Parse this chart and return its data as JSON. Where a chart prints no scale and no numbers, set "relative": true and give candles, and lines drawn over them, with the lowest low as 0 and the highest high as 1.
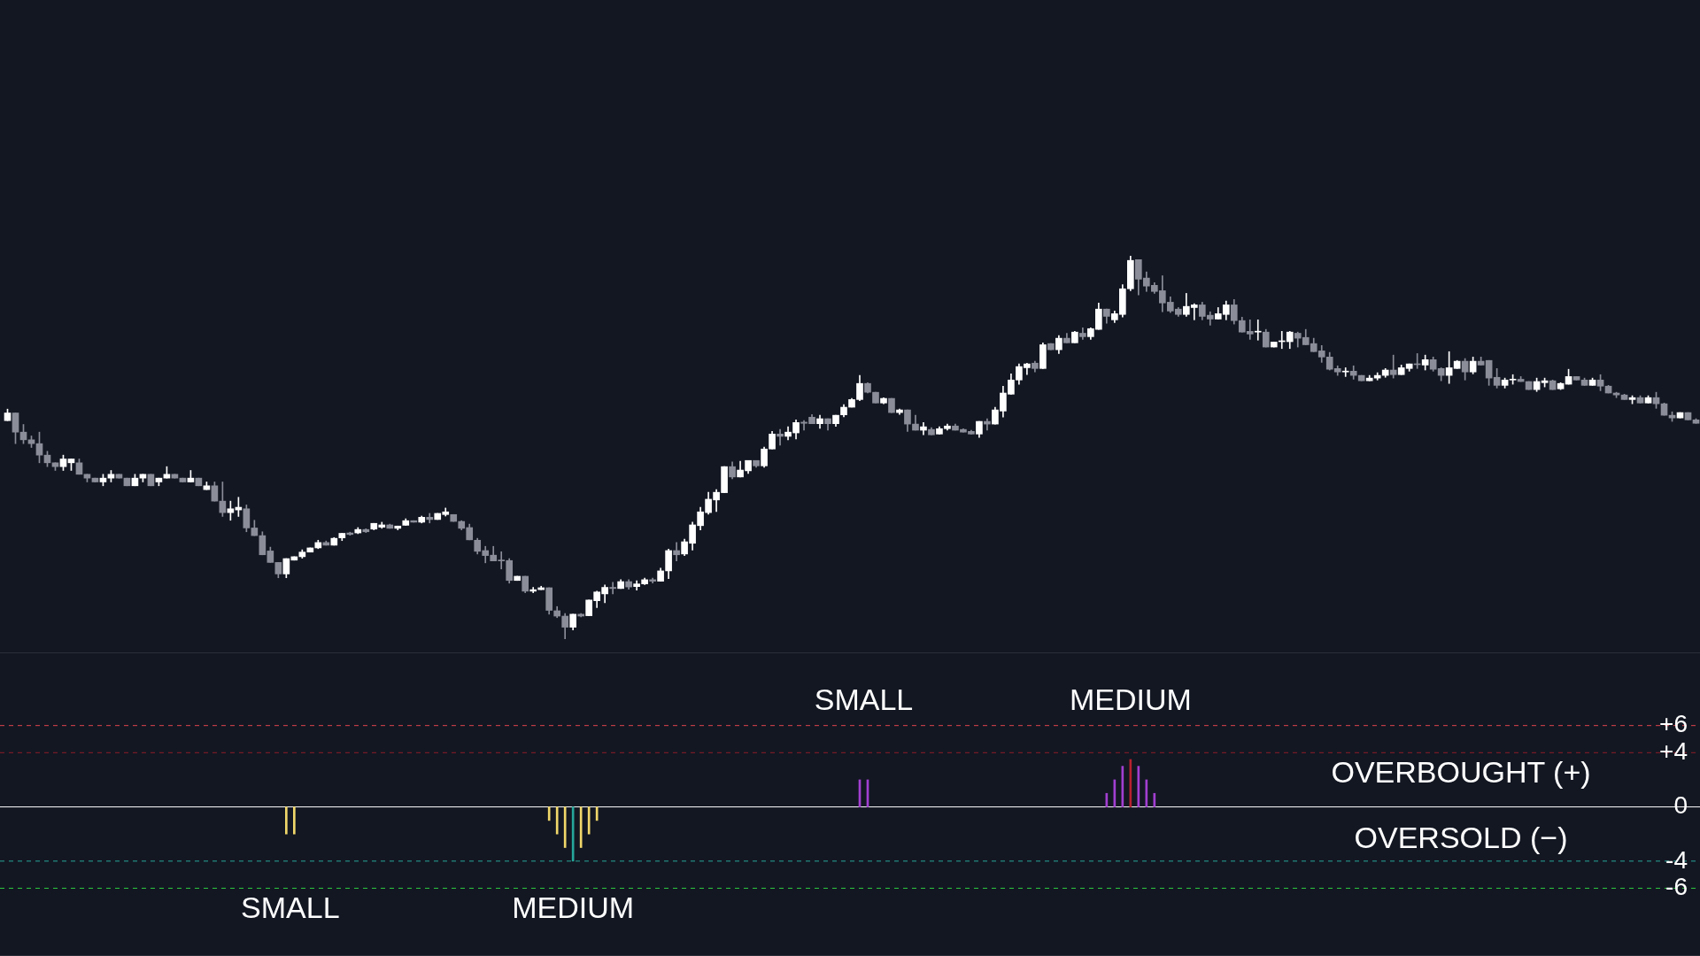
{
  "chart_data": [
    {
      "type": "candlestick",
      "relative": true,
      "tick_labels": false,
      "categories": [
        null,
        null,
        null,
        null,
        null,
        null,
        null,
        null,
        null,
        null,
        null,
        null,
        null,
        null,
        null,
        null,
        null,
        null,
        null,
        null,
        null,
        null,
        null,
        null,
        null,
        null,
        null,
        null,
        null,
        null,
        null,
        null,
        null,
        null,
        null,
        null,
        null,
        null,
        null,
        null,
        null,
        null,
        null,
        null,
        null,
        null,
        null,
        null,
        null,
        null,
        null,
        null,
        null,
        null,
        null,
        null,
        null,
        null,
        null,
        null,
        null,
        null,
        null,
        null,
        null,
        null,
        null,
        null,
        null,
        null,
        null,
        null,
        null,
        null,
        null,
        null,
        null,
        null,
        null,
        null,
        null,
        null,
        null,
        null,
        null,
        null,
        null,
        null,
        null,
        null,
        null,
        null,
        null,
        null,
        null,
        null,
        null,
        null,
        null,
        null,
        null,
        null,
        null,
        null,
        null,
        null,
        null,
        null,
        null,
        null,
        null,
        null,
        null,
        null,
        null,
        null,
        null,
        null,
        null,
        null,
        null,
        null,
        null,
        null,
        null,
        null,
        null,
        null,
        null,
        null,
        null,
        null,
        null,
        null,
        null,
        null,
        null,
        null,
        null,
        null,
        null,
        null,
        null,
        null,
        null,
        null,
        null,
        null,
        null,
        null,
        null,
        null,
        null,
        null,
        null,
        null,
        null,
        null,
        null,
        null,
        null,
        null,
        null,
        null,
        null,
        null,
        null,
        null,
        null,
        null,
        null,
        null,
        null,
        null,
        null,
        null,
        null,
        null,
        null,
        null,
        null,
        null,
        null,
        null,
        null,
        null,
        null,
        null,
        null,
        null,
        null,
        null,
        null,
        null,
        null,
        null,
        null,
        null,
        null,
        null,
        null,
        null,
        null,
        null,
        null,
        null,
        null,
        null,
        null,
        null,
        null,
        null,
        null
      ],
      "ohlc": [
        [
          0.57,
          0.6,
          0.57,
          0.59
        ],
        [
          0.59,
          0.59,
          0.51,
          0.54
        ],
        [
          0.54,
          0.56,
          0.51,
          0.52
        ],
        [
          0.52,
          0.53,
          0.5,
          0.51
        ],
        [
          0.51,
          0.54,
          0.46,
          0.48
        ],
        [
          0.48,
          0.49,
          0.45,
          0.46
        ],
        [
          0.46,
          0.46,
          0.44,
          0.45
        ],
        [
          0.45,
          0.48,
          0.44,
          0.47
        ],
        [
          0.46,
          0.47,
          0.44,
          0.47
        ],
        [
          0.46,
          0.47,
          0.43,
          0.43
        ],
        [
          0.43,
          0.43,
          0.41,
          0.42
        ],
        [
          0.42,
          0.42,
          0.41,
          0.41
        ],
        [
          0.41,
          0.43,
          0.4,
          0.42
        ],
        [
          0.42,
          0.44,
          0.41,
          0.43
        ],
        [
          0.43,
          0.43,
          0.42,
          0.42
        ],
        [
          0.42,
          0.42,
          0.4,
          0.4
        ],
        [
          0.4,
          0.43,
          0.4,
          0.42
        ],
        [
          0.42,
          0.43,
          0.41,
          0.43
        ],
        [
          0.43,
          0.43,
          0.4,
          0.4
        ],
        [
          0.41,
          0.42,
          0.4,
          0.42
        ],
        [
          0.42,
          0.45,
          0.42,
          0.43
        ],
        [
          0.43,
          0.43,
          0.42,
          0.42
        ],
        [
          0.42,
          0.42,
          0.41,
          0.41
        ],
        [
          0.41,
          0.44,
          0.41,
          0.42
        ],
        [
          0.42,
          0.42,
          0.4,
          0.4
        ],
        [
          0.39,
          0.41,
          0.39,
          0.4
        ],
        [
          0.4,
          0.41,
          0.36,
          0.36
        ],
        [
          0.36,
          0.41,
          0.32,
          0.33
        ],
        [
          0.33,
          0.36,
          0.31,
          0.34
        ],
        [
          0.337,
          0.37,
          0.32,
          0.344
        ],
        [
          0.34,
          0.35,
          0.28,
          0.29
        ],
        [
          0.29,
          0.31,
          0.27,
          0.27
        ],
        [
          0.27,
          0.28,
          0.22,
          0.22
        ],
        [
          0.23,
          0.24,
          0.2,
          0.2
        ],
        [
          0.2,
          0.2,
          0.16,
          0.17
        ],
        [
          0.17,
          0.21,
          0.16,
          0.21
        ],
        [
          0.206,
          0.215,
          0.206,
          0.215
        ],
        [
          0.215,
          0.233,
          0.211,
          0.227
        ],
        [
          0.227,
          0.238,
          0.227,
          0.238
        ],
        [
          0.238,
          0.258,
          0.236,
          0.252
        ],
        [
          0.252,
          0.256,
          0.245,
          0.245
        ],
        [
          0.245,
          0.265,
          0.245,
          0.263
        ],
        [
          0.264,
          0.276,
          0.257,
          0.276
        ],
        [
          0.277,
          0.279,
          0.271,
          0.273
        ],
        [
          0.277,
          0.291,
          0.275,
          0.286
        ],
        [
          0.286,
          0.288,
          0.278,
          0.28
        ],
        [
          0.287,
          0.302,
          0.285,
          0.302
        ],
        [
          0.292,
          0.305,
          0.289,
          0.298
        ],
        [
          0.298,
          0.3,
          0.289,
          0.289
        ],
        [
          0.289,
          0.295,
          0.285,
          0.295
        ],
        [
          0.297,
          0.314,
          0.297,
          0.309
        ],
        [
          0.309,
          0.309,
          0.305,
          0.305
        ],
        [
          0.305,
          0.321,
          0.303,
          0.318
        ],
        [
          0.318,
          0.328,
          0.303,
          0.312
        ],
        [
          0.312,
          0.328,
          0.312,
          0.328
        ],
        [
          0.325,
          0.342,
          0.321,
          0.332
        ],
        [
          0.325,
          0.325,
          0.307,
          0.307
        ],
        [
          0.307,
          0.309,
          0.285,
          0.289
        ],
        [
          0.291,
          0.3,
          0.259,
          0.259
        ],
        [
          0.258,
          0.263,
          0.222,
          0.229
        ],
        [
          0.231,
          0.242,
          0.199,
          0.218
        ],
        [
          0.219,
          0.242,
          0.204,
          0.204
        ],
        [
          0.206,
          0.228,
          0.183,
          0.204
        ],
        [
          0.205,
          0.21,
          0.146,
          0.153
        ],
        [
          0.153,
          0.164,
          0.153,
          0.164
        ],
        [
          0.164,
          0.164,
          0.121,
          0.125
        ],
        [
          0.125,
          0.135,
          0.121,
          0.129
        ],
        [
          0.129,
          0.138,
          0.129,
          0.134
        ],
        [
          0.134,
          0.134,
          0.065,
          0.075
        ],
        [
          0.074,
          0.085,
          0.056,
          0.06
        ],
        [
          0.06,
          0.067,
          0,
          0.031
        ],
        [
          0.031,
          0.065,
          0.024,
          0.065
        ],
        [
          0.065,
          0.067,
          0.058,
          0.06
        ],
        [
          0.061,
          0.102,
          0.061,
          0.102
        ],
        [
          0.1,
          0.125,
          0.082,
          0.123
        ],
        [
          0.118,
          0.141,
          0.095,
          0.135
        ],
        [
          0.135,
          0.148,
          0.118,
          0.132
        ],
        [
          0.132,
          0.155,
          0.132,
          0.15
        ],
        [
          0.15,
          0.155,
          0.13,
          0.136
        ],
        [
          0.137,
          0.152,
          0.128,
          0.144
        ],
        [
          0.144,
          0.159,
          0.142,
          0.155
        ],
        [
          0.155,
          0.159,
          0.146,
          0.151
        ],
        [
          0.151,
          0.185,
          0.151,
          0.178
        ],
        [
          0.178,
          0.235,
          0.158,
          0.231
        ],
        [
          0.231,
          0.252,
          0.204,
          0.22
        ],
        [
          0.222,
          0.261,
          0.218,
          0.254
        ],
        [
          0.25,
          0.305,
          0.232,
          0.298
        ],
        [
          0.296,
          0.344,
          0.285,
          0.332
        ],
        [
          0.33,
          0.383,
          0.326,
          0.365
        ],
        [
          0.363,
          0.39,
          0.333,
          0.383
        ],
        [
          0.382,
          0.45,
          0.382,
          0.45
        ],
        [
          0.45,
          0.462,
          0.418,
          0.423
        ],
        [
          0.423,
          0.464,
          0.423,
          0.441
        ],
        [
          0.439,
          0.466,
          0.432,
          0.466
        ],
        [
          0.466,
          0.466,
          0.448,
          0.452
        ],
        [
          0.452,
          0.501,
          0.448,
          0.496
        ],
        [
          0.496,
          0.542,
          0.496,
          0.535
        ],
        [
          0.535,
          0.547,
          0.506,
          0.529
        ],
        [
          0.529,
          0.554,
          0.52,
          0.54
        ],
        [
          0.538,
          0.572,
          0.522,
          0.565
        ],
        [
          0.566,
          0.57,
          0.545,
          0.563
        ],
        [
          0.579,
          0.586,
          0.562,
          0.562
        ],
        [
          0.562,
          0.584,
          0.55,
          0.575
        ],
        [
          0.575,
          0.575,
          0.545,
          0.562
        ],
        [
          0.562,
          0.584,
          0.555,
          0.584
        ],
        [
          0.585,
          0.612,
          0.58,
          0.605
        ],
        [
          0.605,
          0.628,
          0.605,
          0.625
        ],
        [
          0.625,
          0.688,
          0.622,
          0.667
        ],
        [
          0.667,
          0.669,
          0.642,
          0.644
        ],
        [
          0.644,
          0.644,
          0.616,
          0.616
        ],
        [
          0.616,
          0.63,
          0.614,
          0.628
        ],
        [
          0.628,
          0.628,
          0.591,
          0.591
        ],
        [
          0.591,
          0.6,
          0.586,
          0.598
        ],
        [
          0.598,
          0.598,
          0.542,
          0.561
        ],
        [
          0.561,
          0.584,
          0.545,
          0.545
        ],
        [
          0.545,
          0.565,
          0.533,
          0.554
        ],
        [
          0.547,
          0.552,
          0.533,
          0.533
        ],
        [
          0.535,
          0.554,
          0.535,
          0.549
        ],
        [
          0.549,
          0.561,
          0.545,
          0.556
        ],
        [
          0.556,
          0.561,
          0.545,
          0.545
        ],
        [
          0.547,
          0.549,
          0.54,
          0.54
        ],
        [
          0.542,
          0.545,
          0.535,
          0.535
        ],
        [
          0.535,
          0.568,
          0.526,
          0.568
        ],
        [
          0.568,
          0.575,
          0.545,
          0.561
        ],
        [
          0.561,
          0.605,
          0.561,
          0.598
        ],
        [
          0.595,
          0.66,
          0.579,
          0.642
        ],
        [
          0.639,
          0.692,
          0.639,
          0.676
        ],
        [
          0.676,
          0.718,
          0.665,
          0.711
        ],
        [
          0.708,
          0.72,
          0.69,
          0.718
        ],
        [
          0.72,
          0.725,
          0.697,
          0.706
        ],
        [
          0.706,
          0.773,
          0.706,
          0.768
        ],
        [
          0.771,
          0.771,
          0.755,
          0.755
        ],
        [
          0.755,
          0.792,
          0.745,
          0.785
        ],
        [
          0.785,
          0.798,
          0.773,
          0.773
        ],
        [
          0.773,
          0.803,
          0.773,
          0.801
        ],
        [
          0.798,
          0.812,
          0.782,
          0.789
        ],
        [
          0.789,
          0.812,
          0.782,
          0.81
        ],
        [
          0.808,
          0.877,
          0.808,
          0.861
        ],
        [
          0.861,
          0.861,
          0.824,
          0.842
        ],
        [
          0.833,
          0.856,
          0.826,
          0.849
        ],
        [
          0.847,
          0.925,
          0.84,
          0.914
        ],
        [
          0.914,
          1,
          0.909,
          0.988
        ],
        [
          0.99,
          0.99,
          0.898,
          0.939
        ],
        [
          0.942,
          0.958,
          0.907,
          0.921
        ],
        [
          0.923,
          0.93,
          0.902,
          0.907
        ],
        [
          0.909,
          0.948,
          0.854,
          0.877
        ],
        [
          0.879,
          0.893,
          0.852,
          0.856
        ],
        [
          0.861,
          0.865,
          0.842,
          0.847
        ],
        [
          0.847,
          0.902,
          0.842,
          0.868
        ],
        [
          0.865,
          0.875,
          0.833,
          0.872
        ],
        [
          0.872,
          0.879,
          0.833,
          0.842
        ],
        [
          0.845,
          0.854,
          0.819,
          0.835
        ],
        [
          0.835,
          0.865,
          0.835,
          0.849
        ],
        [
          0.847,
          0.882,
          0.833,
          0.872
        ],
        [
          0.872,
          0.886,
          0.822,
          0.831
        ],
        [
          0.831,
          0.84,
          0.801,
          0.801
        ],
        [
          0.803,
          0.833,
          0.782,
          0.796
        ],
        [
          0.801,
          0.833,
          0.78,
          0.803
        ],
        [
          0.801,
          0.808,
          0.762,
          0.762
        ],
        [
          0.762,
          0.775,
          0.762,
          0.775
        ],
        [
          0.776,
          0.803,
          0.758,
          0.778
        ],
        [
          0.776,
          0.803,
          0.758,
          0.801
        ],
        [
          0.798,
          0.801,
          0.762,
          0.785
        ],
        [
          0.787,
          0.808,
          0.768,
          0.768
        ],
        [
          0.771,
          0.785,
          0.75,
          0.75
        ],
        [
          0.752,
          0.766,
          0.722,
          0.736
        ],
        [
          0.736,
          0.748,
          0.702,
          0.704
        ],
        [
          0.706,
          0.713,
          0.688,
          0.697
        ],
        [
          0.697,
          0.708,
          0.685,
          0.699
        ],
        [
          0.699,
          0.713,
          0.678,
          0.688
        ],
        [
          0.688,
          0.688,
          0.674,
          0.674
        ],
        [
          0.674,
          0.688,
          0.674,
          0.681
        ],
        [
          0.681,
          0.695,
          0.676,
          0.688
        ],
        [
          0.688,
          0.706,
          0.683,
          0.702
        ],
        [
          0.702,
          0.741,
          0.681,
          0.69
        ],
        [
          0.69,
          0.715,
          0.69,
          0.708
        ],
        [
          0.706,
          0.718,
          0.699,
          0.718
        ],
        [
          0.718,
          0.745,
          0.706,
          0.716
        ],
        [
          0.715,
          0.741,
          0.702,
          0.729
        ],
        [
          0.729,
          0.736,
          0.699,
          0.704
        ],
        [
          0.706,
          0.708,
          0.674,
          0.688
        ],
        [
          0.688,
          0.75,
          0.667,
          0.708
        ],
        [
          0.706,
          0.727,
          0.706,
          0.725
        ],
        [
          0.725,
          0.732,
          0.676,
          0.697
        ],
        [
          0.697,
          0.736,
          0.692,
          0.725
        ],
        [
          0.725,
          0.736,
          0.715,
          0.715
        ],
        [
          0.727,
          0.727,
          0.662,
          0.681
        ],
        [
          0.683,
          0.706,
          0.655,
          0.662
        ],
        [
          0.662,
          0.681,
          0.655,
          0.676
        ],
        [
          0.676,
          0.69,
          0.665,
          0.678
        ],
        [
          0.678,
          0.685,
          0.672,
          0.672
        ],
        [
          0.672,
          0.672,
          0.651,
          0.651
        ],
        [
          0.651,
          0.681,
          0.646,
          0.672
        ],
        [
          0.669,
          0.681,
          0.658,
          0.674
        ],
        [
          0.674,
          0.676,
          0.651,
          0.651
        ],
        [
          0.653,
          0.669,
          0.651,
          0.667
        ],
        [
          0.665,
          0.704,
          0.665,
          0.685
        ],
        [
          0.685,
          0.685,
          0.676,
          0.676
        ],
        [
          0.676,
          0.681,
          0.662,
          0.662
        ],
        [
          0.662,
          0.681,
          0.662,
          0.676
        ],
        [
          0.676,
          0.69,
          0.648,
          0.66
        ],
        [
          0.66,
          0.662,
          0.642,
          0.642
        ],
        [
          0.642,
          0.644,
          0.63,
          0.637
        ],
        [
          0.637,
          0.639,
          0.625,
          0.625
        ],
        [
          0.625,
          0.635,
          0.614,
          0.63
        ],
        [
          0.63,
          0.635,
          0.616,
          0.616
        ],
        [
          0.616,
          0.635,
          0.616,
          0.63
        ],
        [
          0.63,
          0.644,
          0.602,
          0.614
        ],
        [
          0.614,
          0.616,
          0.584,
          0.584
        ],
        [
          0.584,
          0.593,
          0.568,
          0.577
        ],
        [
          0.577,
          0.591,
          0.577,
          0.591
        ],
        [
          0.591,
          0.591,
          0.572,
          0.572
        ],
        [
          0.572,
          0.575,
          0.563,
          0.563
        ]
      ],
      "colors": [
        "#ffffff",
        "#8b8e98",
        "#8b8e98",
        "#8b8e98",
        "#8b8e98",
        "#8b8e98",
        "#8b8e98",
        "#ffffff",
        "#ffffff",
        "#8b8e98",
        "#8b8e98",
        "#8b8e98",
        "#ffffff",
        "#ffffff",
        "#8b8e98",
        "#8b8e98",
        "#ffffff",
        "#ffffff",
        "#8b8e98",
        "#ffffff",
        "#ffffff",
        "#8b8e98",
        "#8b8e98",
        "#ffffff",
        "#8b8e98",
        "#ffffff",
        "#8b8e98",
        "#8b8e98",
        "#ffffff",
        "#ffffff",
        "#8b8e98",
        "#8b8e98",
        "#8b8e98",
        "#8b8e98",
        "#8b8e98",
        "#ffffff",
        "#ffffff",
        "#ffffff",
        "#ffffff",
        "#ffffff",
        "#8b8e98",
        "#ffffff",
        "#ffffff",
        "#8b8e98",
        "#ffffff",
        "#8b8e98",
        "#ffffff",
        "#ffffff",
        "#8b8e98",
        "#ffffff",
        "#ffffff",
        "#8b8e98",
        "#ffffff",
        "#8b8e98",
        "#ffffff",
        "#ffffff",
        "#8b8e98",
        "#8b8e98",
        "#8b8e98",
        "#8b8e98",
        "#8b8e98",
        "#8b8e98",
        "#8b8e98",
        "#8b8e98",
        "#ffffff",
        "#8b8e98",
        "#ffffff",
        "#ffffff",
        "#8b8e98",
        "#8b8e98",
        "#8b8e98",
        "#ffffff",
        "#8b8e98",
        "#ffffff",
        "#ffffff",
        "#ffffff",
        "#8b8e98",
        "#ffffff",
        "#8b8e98",
        "#ffffff",
        "#ffffff",
        "#8b8e98",
        "#ffffff",
        "#ffffff",
        "#8b8e98",
        "#ffffff",
        "#ffffff",
        "#ffffff",
        "#ffffff",
        "#ffffff",
        "#ffffff",
        "#8b8e98",
        "#ffffff",
        "#ffffff",
        "#8b8e98",
        "#ffffff",
        "#ffffff",
        "#8b8e98",
        "#ffffff",
        "#ffffff",
        "#8b8e98",
        "#8b8e98",
        "#ffffff",
        "#8b8e98",
        "#ffffff",
        "#ffffff",
        "#ffffff",
        "#ffffff",
        "#8b8e98",
        "#8b8e98",
        "#ffffff",
        "#8b8e98",
        "#ffffff",
        "#8b8e98",
        "#8b8e98",
        "#ffffff",
        "#8b8e98",
        "#ffffff",
        "#ffffff",
        "#8b8e98",
        "#8b8e98",
        "#8b8e98",
        "#ffffff",
        "#8b8e98",
        "#ffffff",
        "#ffffff",
        "#ffffff",
        "#ffffff",
        "#ffffff",
        "#8b8e98",
        "#ffffff",
        "#8b8e98",
        "#ffffff",
        "#8b8e98",
        "#ffffff",
        "#8b8e98",
        "#ffffff",
        "#ffffff",
        "#8b8e98",
        "#ffffff",
        "#ffffff",
        "#ffffff",
        "#8b8e98",
        "#8b8e98",
        "#8b8e98",
        "#8b8e98",
        "#8b8e98",
        "#8b8e98",
        "#ffffff",
        "#ffffff",
        "#8b8e98",
        "#8b8e98",
        "#ffffff",
        "#ffffff",
        "#8b8e98",
        "#8b8e98",
        "#8b8e98",
        "#ffffff",
        "#8b8e98",
        "#ffffff",
        "#ffffff",
        "#ffffff",
        "#8b8e98",
        "#8b8e98",
        "#8b8e98",
        "#8b8e98",
        "#8b8e98",
        "#8b8e98",
        "#ffffff",
        "#8b8e98",
        "#8b8e98",
        "#ffffff",
        "#ffffff",
        "#ffffff",
        "#8b8e98",
        "#ffffff",
        "#ffffff",
        "#8b8e98",
        "#ffffff",
        "#8b8e98",
        "#8b8e98",
        "#ffffff",
        "#ffffff",
        "#8b8e98",
        "#ffffff",
        "#8b8e98",
        "#8b8e98",
        "#8b8e98",
        "#ffffff",
        "#ffffff",
        "#8b8e98",
        "#8b8e98",
        "#ffffff",
        "#ffffff",
        "#8b8e98",
        "#ffffff",
        "#ffffff",
        "#8b8e98",
        "#8b8e98",
        "#ffffff",
        "#8b8e98",
        "#8b8e98",
        "#8b8e98",
        "#8b8e98",
        "#ffffff",
        "#8b8e98",
        "#ffffff",
        "#8b8e98",
        "#8b8e98",
        "#8b8e98",
        "#ffffff",
        "#8b8e98",
        "#8b8e98"
      ]
    },
    {
      "type": "bar",
      "tick_labels": "y",
      "categories": [
        null,
        null,
        null,
        null,
        null,
        null,
        null,
        null,
        null,
        null,
        null,
        null,
        null,
        null,
        null,
        null,
        null,
        null,
        null,
        null,
        null,
        null,
        null,
        null,
        null,
        null,
        null,
        null,
        null,
        null,
        null,
        null,
        null,
        null,
        null,
        null,
        null,
        null,
        null,
        null,
        null,
        null,
        null,
        null,
        null,
        null,
        null,
        null,
        null,
        null,
        null,
        null,
        null,
        null,
        null,
        null,
        null,
        null,
        null,
        null,
        null,
        null,
        null,
        null,
        null,
        null,
        null,
        null,
        null,
        null,
        null,
        null,
        null,
        null,
        null,
        null,
        null,
        null,
        null,
        null,
        null,
        null,
        null,
        null,
        null,
        null,
        null,
        null,
        null,
        null,
        null,
        null,
        null,
        null,
        null,
        null,
        null,
        null,
        null,
        null,
        null,
        null,
        null,
        null,
        null,
        null,
        null,
        null,
        null,
        null,
        null,
        null,
        null,
        null,
        null,
        null,
        null,
        null,
        null,
        null,
        null,
        null,
        null,
        null,
        null,
        null,
        null,
        null,
        null,
        null,
        null,
        null,
        null,
        null,
        null,
        null,
        null,
        null,
        null,
        null,
        null,
        null,
        null,
        null,
        null,
        null,
        null,
        null,
        null,
        null,
        null,
        null,
        null,
        null,
        null,
        null,
        null,
        null,
        null,
        null,
        null,
        null,
        null,
        null,
        null,
        null,
        null,
        null,
        null,
        null,
        null,
        null,
        null,
        null,
        null,
        null,
        null,
        null,
        null,
        null,
        null,
        null,
        null,
        null,
        null,
        null,
        null,
        null,
        null,
        null,
        null,
        null,
        null,
        null,
        null,
        null,
        null,
        null,
        null,
        null,
        null,
        null,
        null,
        null,
        null,
        null,
        null,
        null,
        null,
        null,
        null,
        null,
        null
      ],
      "values": [
        null,
        null,
        null,
        null,
        null,
        null,
        null,
        null,
        null,
        null,
        null,
        null,
        null,
        null,
        null,
        null,
        null,
        null,
        null,
        null,
        null,
        null,
        null,
        null,
        null,
        null,
        null,
        null,
        null,
        null,
        null,
        null,
        null,
        null,
        null,
        -2,
        -2,
        null,
        null,
        null,
        null,
        null,
        null,
        null,
        null,
        null,
        null,
        null,
        null,
        null,
        null,
        null,
        null,
        null,
        null,
        null,
        null,
        null,
        null,
        null,
        null,
        null,
        null,
        null,
        null,
        null,
        null,
        null,
        -1,
        -2,
        -3,
        -4,
        -3,
        -2,
        -1,
        null,
        null,
        null,
        null,
        null,
        null,
        null,
        null,
        null,
        null,
        null,
        null,
        null,
        null,
        null,
        null,
        null,
        null,
        null,
        null,
        null,
        null,
        null,
        null,
        null,
        null,
        null,
        null,
        null,
        null,
        null,
        null,
        2,
        2,
        null,
        null,
        null,
        null,
        null,
        null,
        null,
        null,
        null,
        null,
        null,
        null,
        null,
        null,
        null,
        null,
        null,
        null,
        null,
        null,
        null,
        null,
        null,
        null,
        null,
        null,
        null,
        null,
        null,
        1,
        2,
        3,
        3.5,
        3,
        2,
        1,
        null,
        null,
        null,
        null,
        null,
        null,
        null,
        null,
        null,
        null,
        null,
        null,
        null,
        null,
        null,
        null,
        null,
        null,
        null,
        null,
        null,
        null,
        null,
        null,
        null,
        null,
        null,
        null,
        null,
        null,
        null,
        null,
        null,
        null,
        null,
        null,
        null,
        null,
        null,
        null,
        null,
        null,
        null,
        null,
        null,
        null,
        null,
        null,
        null,
        null,
        null,
        null,
        null,
        null,
        null,
        null,
        null,
        null,
        null,
        null,
        null,
        null,
        null,
        null,
        null,
        null,
        null,
        null
      ],
      "colors": [
        null,
        null,
        null,
        null,
        null,
        null,
        null,
        null,
        null,
        null,
        null,
        null,
        null,
        null,
        null,
        null,
        null,
        null,
        null,
        null,
        null,
        null,
        null,
        null,
        null,
        null,
        null,
        null,
        null,
        null,
        null,
        null,
        null,
        null,
        null,
        "#f0d76a",
        "#f0d76a",
        null,
        null,
        null,
        null,
        null,
        null,
        null,
        null,
        null,
        null,
        null,
        null,
        null,
        null,
        null,
        null,
        null,
        null,
        null,
        null,
        null,
        null,
        null,
        null,
        null,
        null,
        null,
        null,
        null,
        null,
        null,
        "#f0d76a",
        "#f0d76a",
        "#f0d76a",
        "#26a69a",
        "#f0d76a",
        "#f0d76a",
        "#f0d76a",
        null,
        null,
        null,
        null,
        null,
        null,
        null,
        null,
        null,
        null,
        null,
        null,
        null,
        null,
        null,
        null,
        null,
        null,
        null,
        null,
        null,
        null,
        null,
        null,
        null,
        null,
        null,
        null,
        null,
        null,
        null,
        null,
        "#a23fd1",
        "#a23fd1",
        null,
        null,
        null,
        null,
        null,
        null,
        null,
        null,
        null,
        null,
        null,
        null,
        null,
        null,
        null,
        null,
        null,
        null,
        null,
        null,
        null,
        null,
        null,
        null,
        null,
        null,
        null,
        null,
        null,
        "#a23fd1",
        "#a23fd1",
        "#a23fd1",
        "#b7212f",
        "#a23fd1",
        "#a23fd1",
        "#a23fd1",
        null,
        null,
        null,
        null,
        null,
        null,
        null,
        null,
        null,
        null,
        null,
        null,
        null,
        null,
        null,
        null,
        null,
        null,
        null,
        null,
        null,
        null,
        null,
        null,
        null,
        null,
        null,
        null,
        null,
        null,
        null,
        null,
        null,
        null,
        null,
        null,
        null,
        null,
        null,
        null,
        null,
        null,
        null,
        null,
        null,
        null,
        null,
        null,
        null,
        null,
        null,
        null,
        null,
        null,
        null,
        null,
        null,
        null,
        null,
        null,
        null,
        null,
        null,
        null,
        null,
        null,
        null,
        null
      ],
      "ylim": [
        -11,
        11.4
      ],
      "yticks": [
        {
          "value": 6,
          "label": "+6"
        },
        {
          "value": 4,
          "label": "+4"
        },
        0,
        -4,
        -6
      ],
      "ref_lines": [
        {
          "axis": "y",
          "value": 6,
          "color": "#e0444e",
          "line_style": "dashed"
        },
        {
          "axis": "y",
          "value": 4,
          "color": "#8e1d28",
          "line_style": "dashed"
        },
        {
          "axis": "y",
          "value": 0,
          "color": "#ffffff",
          "line_style": "solid"
        },
        {
          "axis": "y",
          "value": -4,
          "color": "#26a69a",
          "line_style": "dashed"
        },
        {
          "axis": "y",
          "value": -6,
          "color": "#2ecc40",
          "line_style": "dashed"
        }
      ],
      "annotations": [
        "SMALL",
        "MEDIUM",
        "SMALL",
        "MEDIUM",
        "OVERBOUGHT (+)",
        "OVERSOLD (−)"
      ]
    }
  ]
}
